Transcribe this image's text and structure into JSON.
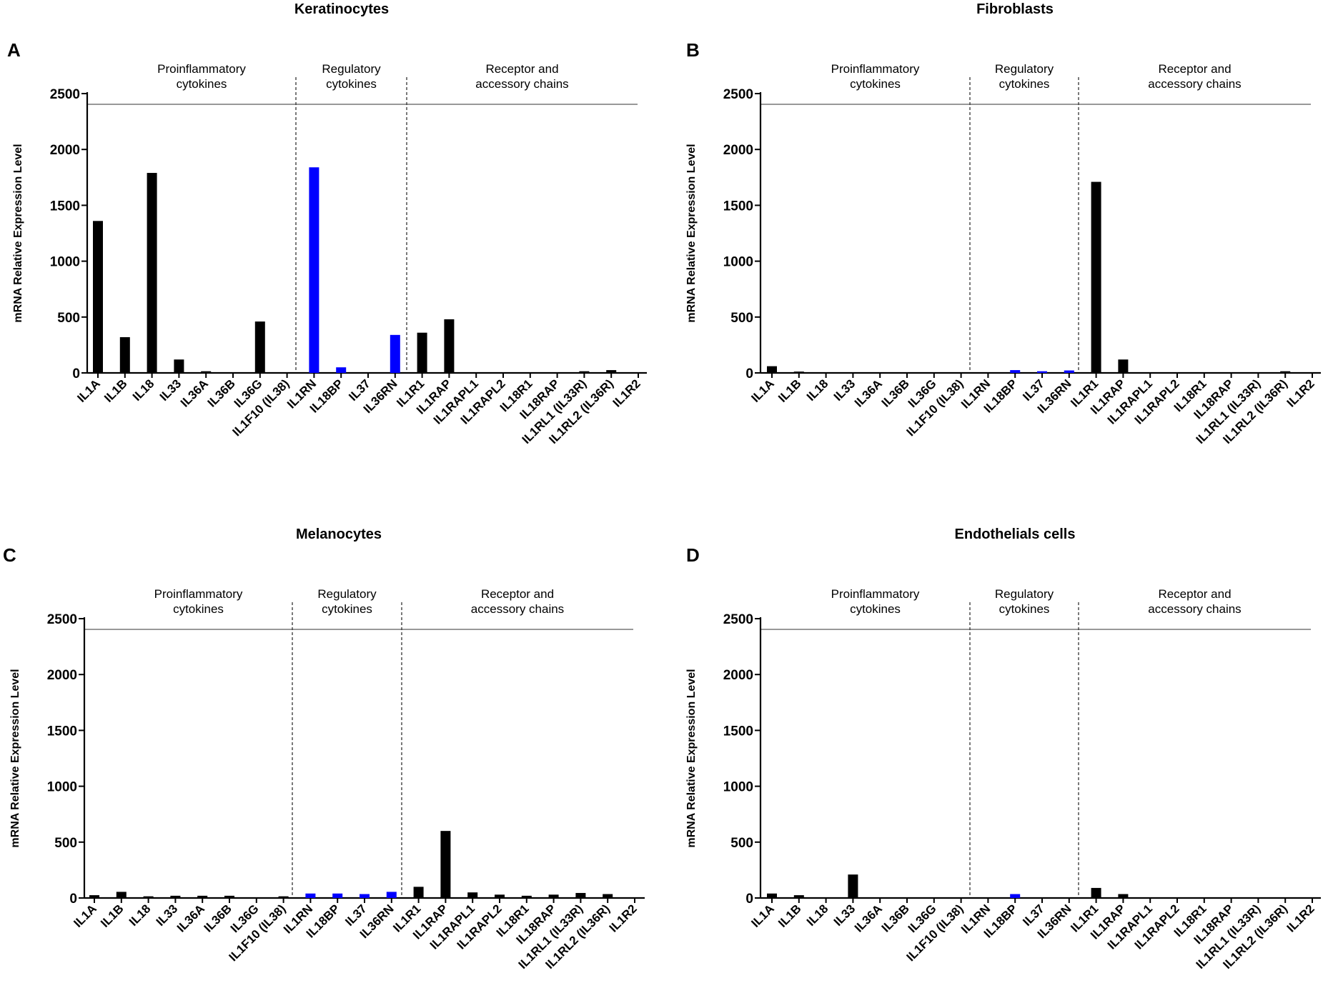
{
  "colors": {
    "proinflammatory": "#000000",
    "regulatory": "#0000ff",
    "receptor": "#000000",
    "axis": "#000000",
    "top_line": "#777777"
  },
  "groups": [
    {
      "name": "proinflammatory",
      "label_lines": [
        "Proinflammatory",
        "cytokines"
      ],
      "count": 8
    },
    {
      "name": "regulatory",
      "label_lines": [
        "Regulatory",
        "cytokines"
      ],
      "count": 4
    },
    {
      "name": "receptor",
      "label_lines": [
        "Receptor and",
        "accessory chains"
      ],
      "count": 9
    }
  ],
  "chart_data": [
    {
      "type": "bar",
      "panel": "A",
      "title": "Keratinocytes",
      "ylabel": "mRNA Relative Expression Level",
      "xlabel": "",
      "ylim": [
        0,
        2500
      ],
      "yticks": [
        "0",
        "500",
        "1000",
        "1500",
        "2000",
        "2500"
      ],
      "categories": [
        "IL1A",
        "IL1B",
        "IL18",
        "IL33",
        "IL36A",
        "IL36B",
        "IL36G",
        "IL1F10 (IL38)",
        "IL1RN",
        "IL18BP",
        "IL37",
        "IL36RN",
        "IL1R1",
        "IL1RAP",
        "IL1RAPL1",
        "IL1RAPL2",
        "IL18R1",
        "IL18RAP",
        "IL1RL1 (IL33R)",
        "IL1RL2 (IL36R)",
        "IL1R2"
      ],
      "values": [
        1360,
        320,
        1790,
        120,
        15,
        0,
        460,
        0,
        1840,
        50,
        0,
        340,
        360,
        480,
        0,
        0,
        0,
        0,
        15,
        25,
        0
      ]
    },
    {
      "type": "bar",
      "panel": "B",
      "title": "Fibroblasts",
      "ylabel": "mRNA Relative Expression Level",
      "xlabel": "",
      "ylim": [
        0,
        2500
      ],
      "yticks": [
        "0",
        "500",
        "1000",
        "1500",
        "2000",
        "2500"
      ],
      "categories": [
        "IL1A",
        "IL1B",
        "IL18",
        "IL33",
        "IL36A",
        "IL36B",
        "IL36G",
        "IL1F10 (IL38)",
        "IL1RN",
        "IL18BP",
        "IL37",
        "IL36RN",
        "IL1R1",
        "IL1RAP",
        "IL1RAPL1",
        "IL1RAPL2",
        "IL18R1",
        "IL18RAP",
        "IL1RL1 (IL33R)",
        "IL1RL2 (IL36R)",
        "IL1R2"
      ],
      "values": [
        60,
        12,
        0,
        0,
        0,
        0,
        0,
        0,
        0,
        25,
        15,
        22,
        1710,
        120,
        0,
        0,
        0,
        0,
        0,
        15,
        0
      ]
    },
    {
      "type": "bar",
      "panel": "C",
      "title": "Melanocytes",
      "ylabel": "mRNA Relative Expression Level",
      "xlabel": "",
      "ylim": [
        0,
        2500
      ],
      "yticks": [
        "0",
        "500",
        "1000",
        "1500",
        "2000",
        "2500"
      ],
      "categories": [
        "IL1A",
        "IL1B",
        "IL18",
        "IL33",
        "IL36A",
        "IL36B",
        "IL36G",
        "IL1F10 (IL38)",
        "IL1RN",
        "IL18BP",
        "IL37",
        "IL36RN",
        "IL1R1",
        "IL1RAP",
        "IL1RAPL1",
        "IL1RAPL2",
        "IL18R1",
        "IL18RAP",
        "IL1RL1 (IL33R)",
        "IL1RL2 (IL36R)",
        "IL1R2"
      ],
      "values": [
        25,
        55,
        15,
        20,
        20,
        20,
        0,
        15,
        40,
        40,
        35,
        55,
        100,
        600,
        50,
        30,
        20,
        30,
        45,
        35,
        0
      ]
    },
    {
      "type": "bar",
      "panel": "D",
      "title": "Endothelials cells",
      "ylabel": "mRNA Relative Expression Level",
      "xlabel": "",
      "ylim": [
        0,
        2500
      ],
      "yticks": [
        "0",
        "500",
        "1000",
        "1500",
        "2000",
        "2500"
      ],
      "categories": [
        "IL1A",
        "IL1B",
        "IL18",
        "IL33",
        "IL36A",
        "IL36B",
        "IL36G",
        "IL1F10 (IL38)",
        "IL1RN",
        "IL18BP",
        "IL37",
        "IL36RN",
        "IL1R1",
        "IL1RAP",
        "IL1RAPL1",
        "IL1RAPL2",
        "IL18R1",
        "IL18RAP",
        "IL1RL1 (IL33R)",
        "IL1RL2 (IL36R)",
        "IL1R2"
      ],
      "values": [
        40,
        25,
        0,
        210,
        0,
        0,
        0,
        0,
        0,
        35,
        0,
        0,
        90,
        35,
        0,
        0,
        0,
        0,
        0,
        0,
        0
      ]
    }
  ]
}
